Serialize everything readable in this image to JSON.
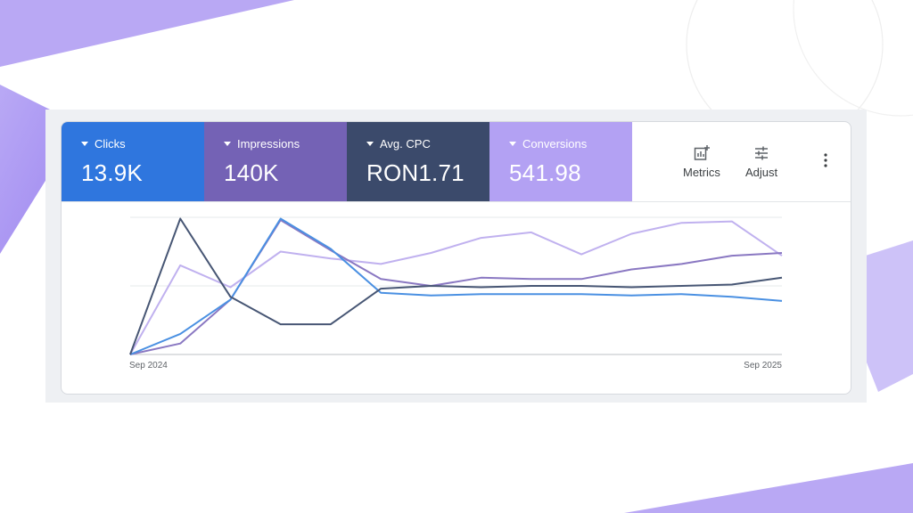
{
  "metrics": [
    {
      "label": "Clicks",
      "value": "13.9K",
      "color": "#2f76de"
    },
    {
      "label": "Impressions",
      "value": "140K",
      "color": "#7462b5"
    },
    {
      "label": "Avg. CPC",
      "value": "RON1.71",
      "color": "#3b4a6b"
    },
    {
      "label": "Conversions",
      "value": "541.98",
      "color": "#b3a1f3"
    }
  ],
  "toolbar": {
    "metrics_label": "Metrics",
    "adjust_label": "Adjust",
    "more_icon": "more-vert-icon"
  },
  "chart_data": {
    "type": "line",
    "x_tick_labels": [
      "Sep 2024",
      "Sep 2025"
    ],
    "grid": true,
    "y_range": [
      0,
      100
    ],
    "series": [
      {
        "metric": "Clicks",
        "color": "#4a90e2",
        "values": [
          0,
          15,
          40,
          99,
          77,
          45,
          43,
          44,
          44,
          44,
          43,
          44,
          42,
          39
        ]
      },
      {
        "metric": "Impressions",
        "color": "#8a78c2",
        "values": [
          0,
          8,
          40,
          98,
          76,
          55,
          50,
          56,
          55,
          55,
          62,
          66,
          72,
          74
        ]
      },
      {
        "metric": "Avg. CPC",
        "color": "#475674",
        "values": [
          0,
          99,
          42,
          22,
          22,
          48,
          50,
          49,
          50,
          50,
          49,
          50,
          51,
          56
        ]
      },
      {
        "metric": "Conversions",
        "color": "#c0b1ef",
        "values": [
          0,
          65,
          49,
          75,
          70,
          66,
          74,
          85,
          89,
          73,
          88,
          96,
          97,
          72
        ]
      }
    ]
  }
}
